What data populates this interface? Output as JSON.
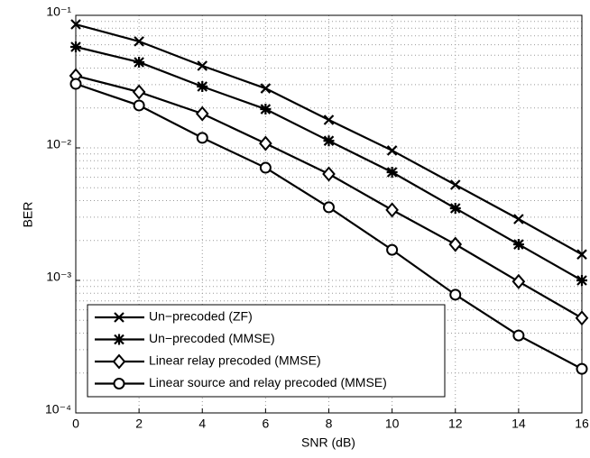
{
  "chart_data": {
    "type": "line",
    "xlabel": "SNR (dB)",
    "ylabel": "BER",
    "x": [
      0,
      2,
      4,
      6,
      8,
      10,
      12,
      14,
      16
    ],
    "xlim": [
      0,
      16
    ],
    "xticks": [
      0,
      2,
      4,
      6,
      8,
      10,
      12,
      14,
      16
    ],
    "ylim": [
      0.0001,
      0.1
    ],
    "yscale": "log",
    "yticks": [
      {
        "value": 0.1,
        "label": "10⁻¹"
      },
      {
        "value": 0.01,
        "label": "10⁻²"
      },
      {
        "value": 0.001,
        "label": "10⁻³"
      },
      {
        "value": 0.0001,
        "label": "10⁻⁴"
      }
    ],
    "grid": true,
    "legend": "lower left",
    "series": [
      {
        "name": "Un−precoded (ZF)",
        "color": "#000000",
        "marker": "x",
        "values": [
          0.0855,
          0.0636,
          0.0416,
          0.0281,
          0.01625,
          0.00955,
          0.00526,
          0.0029,
          0.00157
        ]
      },
      {
        "name": "Un−precoded (MMSE)",
        "color": "#000000",
        "marker": "asterisk",
        "values": [
          0.0578,
          0.0443,
          0.029,
          0.0196,
          0.0113,
          0.00655,
          0.0035,
          0.00187,
          0.001
        ]
      },
      {
        "name": "Linear relay precoded (MMSE)",
        "color": "#000000",
        "marker": "diamond",
        "values": [
          0.035,
          0.0264,
          0.0181,
          0.0108,
          0.00635,
          0.0034,
          0.00187,
          0.00098,
          0.00052
        ]
      },
      {
        "name": "Linear source and relay precoded (MMSE)",
        "color": "#000000",
        "marker": "circle",
        "values": [
          0.0304,
          0.0209,
          0.0119,
          0.00708,
          0.00356,
          0.0017,
          0.00078,
          0.000384,
          0.000215
        ]
      }
    ]
  }
}
